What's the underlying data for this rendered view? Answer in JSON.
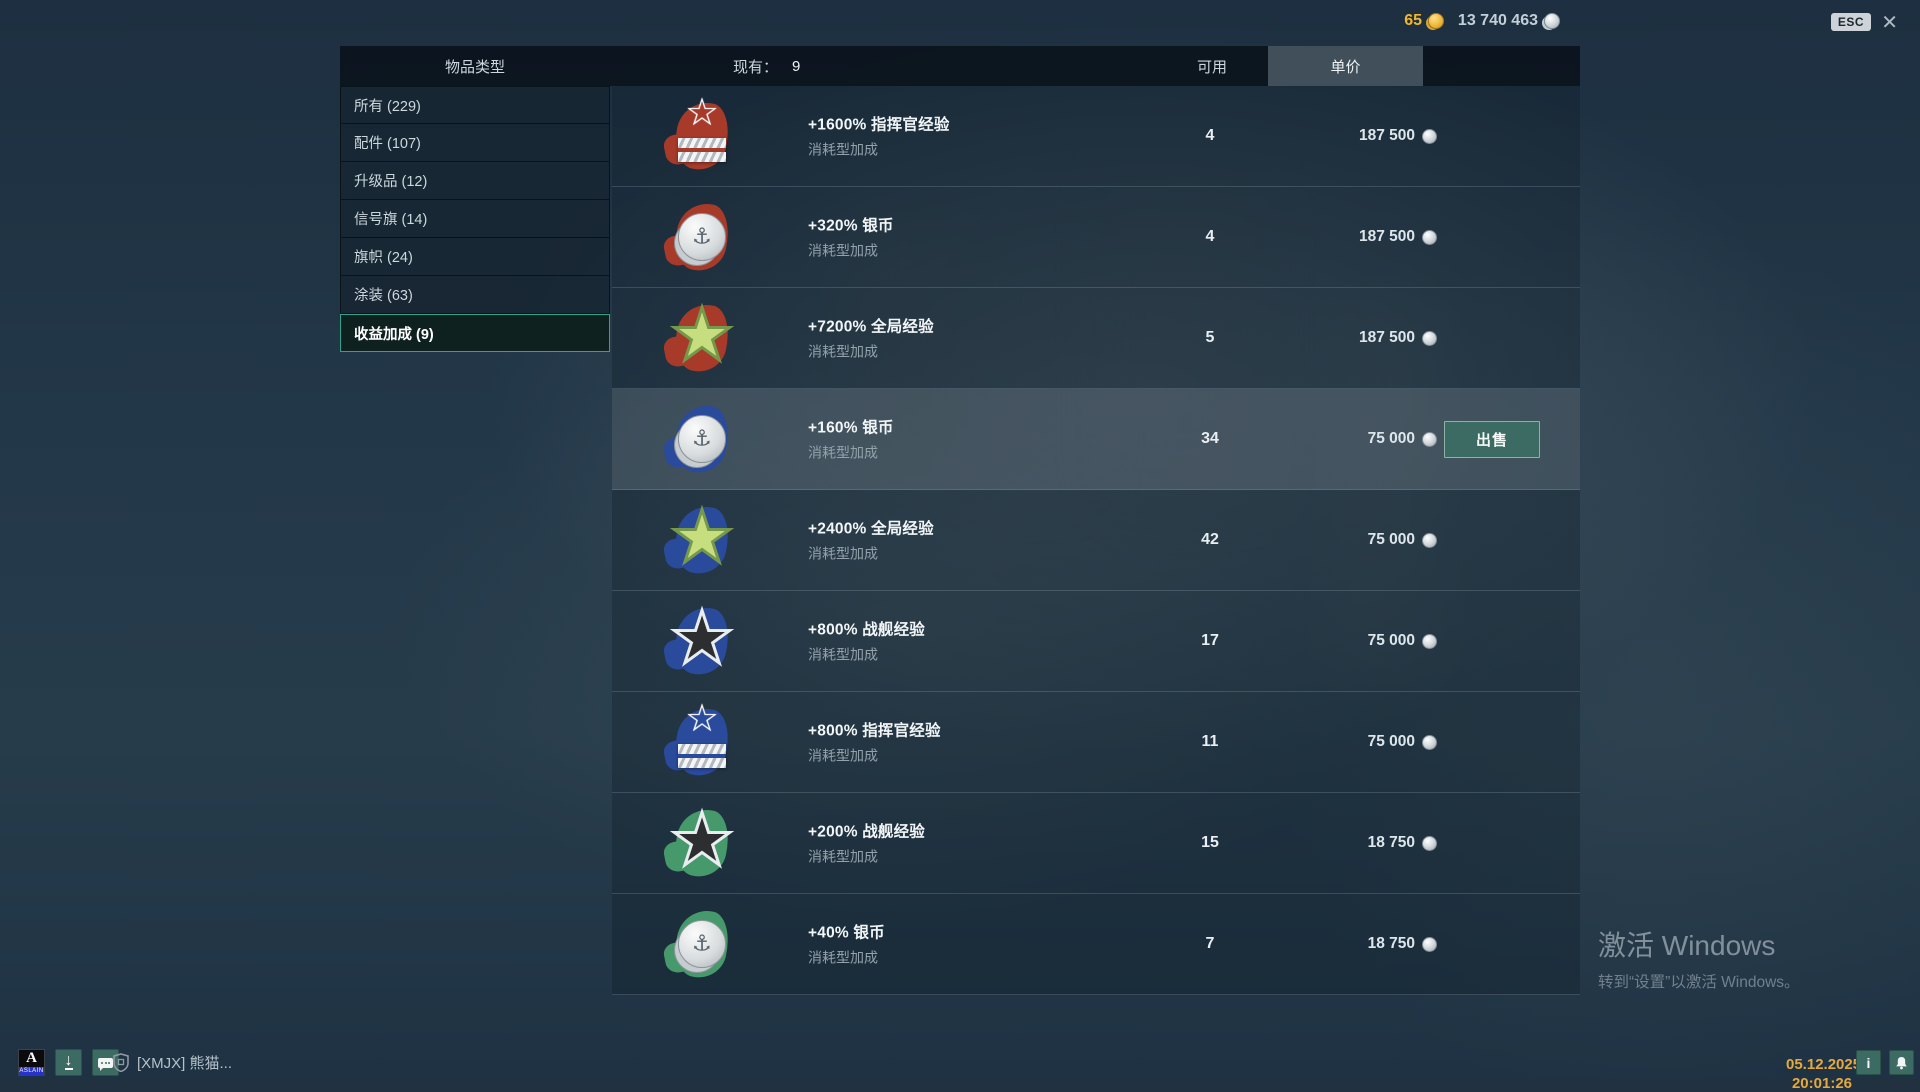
{
  "topbar": {
    "gold": "65",
    "credits": "13 740 463",
    "esc_label": "ESC",
    "close_label": "✕"
  },
  "header": {
    "col_type": "物品类型",
    "col_have_label": "现有：",
    "col_have_value": "9",
    "col_available": "可用",
    "col_price": "单价"
  },
  "sidebar": {
    "items": [
      {
        "label": "所有 (229)",
        "selected": false
      },
      {
        "label": "配件 (107)",
        "selected": false
      },
      {
        "label": "升级品 (12)",
        "selected": false
      },
      {
        "label": "信号旗 (14)",
        "selected": false
      },
      {
        "label": "旗帜 (24)",
        "selected": false
      },
      {
        "label": "涂装 (63)",
        "selected": false
      },
      {
        "label": "收益加成 (9)",
        "selected": true
      }
    ]
  },
  "rows": [
    {
      "title": "+1600% 指挥官经验",
      "subtitle": "消耗型加成",
      "qty": "4",
      "price": "187 500",
      "icon": "commander-xp",
      "splash": "red"
    },
    {
      "title": "+320% 银币",
      "subtitle": "消耗型加成",
      "qty": "4",
      "price": "187 500",
      "icon": "credits",
      "splash": "red"
    },
    {
      "title": "+7200% 全局经验",
      "subtitle": "消耗型加成",
      "qty": "5",
      "price": "187 500",
      "icon": "free-xp",
      "splash": "red"
    },
    {
      "title": "+160% 银币",
      "subtitle": "消耗型加成",
      "qty": "34",
      "price": "75 000",
      "icon": "credits",
      "splash": "blue",
      "hover": true,
      "sell_label": "出售"
    },
    {
      "title": "+2400% 全局经验",
      "subtitle": "消耗型加成",
      "qty": "42",
      "price": "75 000",
      "icon": "free-xp",
      "splash": "blue"
    },
    {
      "title": "+800% 战舰经验",
      "subtitle": "消耗型加成",
      "qty": "17",
      "price": "75 000",
      "icon": "ship-xp",
      "splash": "blue"
    },
    {
      "title": "+800% 指挥官经验",
      "subtitle": "消耗型加成",
      "qty": "11",
      "price": "75 000",
      "icon": "commander-xp",
      "splash": "blue"
    },
    {
      "title": "+200% 战舰经验",
      "subtitle": "消耗型加成",
      "qty": "15",
      "price": "18 750",
      "icon": "ship-xp",
      "splash": "green"
    },
    {
      "title": "+40% 银币",
      "subtitle": "消耗型加成",
      "qty": "7",
      "price": "18 750",
      "icon": "credits",
      "splash": "green"
    }
  ],
  "taskbar": {
    "aslain_letter": "A",
    "aslain_sub": "ASLAIN",
    "clan": "[XMJX]  熊猫...",
    "info_label": "i"
  },
  "footer": {
    "date": "05.12.2025",
    "time": "20:01:26"
  },
  "watermark": {
    "line1": "激活 Windows",
    "line2": "转到“设置”以激活 Windows。"
  },
  "colors": {
    "accent_teal": "#3c6b63",
    "selected_border": "#31a28c",
    "gold": "#f3b62d",
    "date_orange": "#e5a93d"
  }
}
